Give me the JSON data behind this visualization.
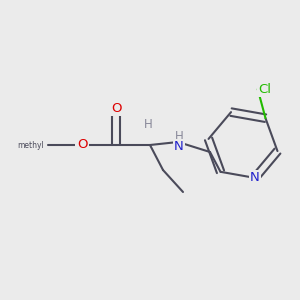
{
  "bg_color": "#ebebeb",
  "bond_color": "#4a4a5a",
  "bond_width": 1.5,
  "atom_colors": {
    "O": "#dd0000",
    "N": "#2222cc",
    "Cl": "#22bb00",
    "H": "#888899",
    "C": "#4a4a5a"
  },
  "font_size_main": 9.5,
  "font_size_h": 8.5,
  "figsize": [
    3.0,
    3.0
  ],
  "dpi": 100,
  "xlim": [
    0,
    300
  ],
  "ylim": [
    0,
    300
  ]
}
